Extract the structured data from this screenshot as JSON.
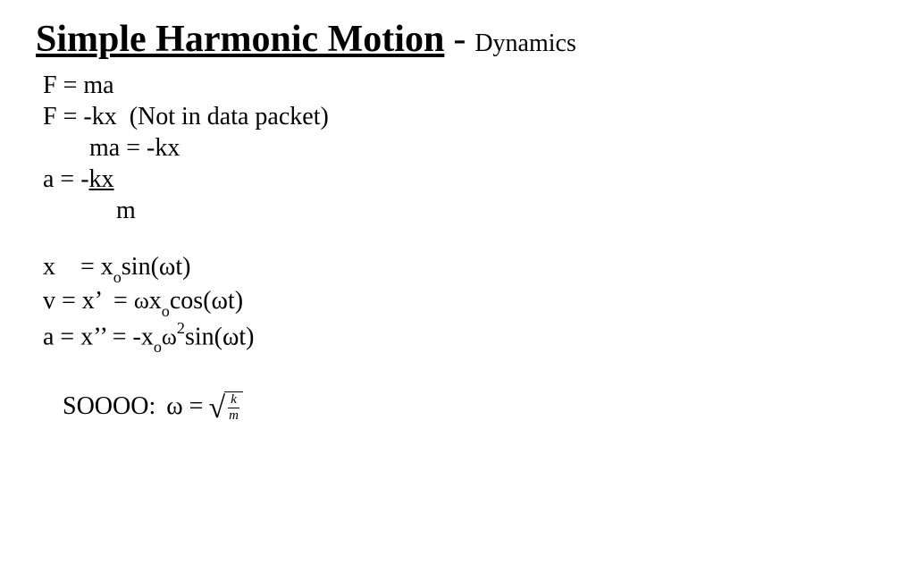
{
  "title": {
    "main": "Simple Harmonic Motion",
    "separator": "-",
    "sub": "Dynamics"
  },
  "equations": {
    "line1": "F = ma",
    "line2": "F = -kx  (Not in data packet)",
    "line3": "ma = -kx",
    "line4_prefix": "a = -",
    "line4_frac_top": "kx",
    "line4_frac_bottom": "m",
    "linex_prefix": "x    = x",
    "linex_sub": "o",
    "linex_suffix": "sin(ωt)",
    "linev_prefix": "v = x’  = ",
    "linev_omega": "ω",
    "linev_x": "x",
    "linev_sub": "o",
    "linev_suffix": "cos(ωt)",
    "linea_prefix": "a = x’’ = -x",
    "linea_sub1": "o",
    "linea_omega": "ω",
    "linea_sup": "2",
    "linea_suffix": "sin(ωt)"
  },
  "conclusion": {
    "label": "SOOOO:  ",
    "omega_eq": "ω = ",
    "radical": "√",
    "frac_num": "k",
    "frac_den": "m"
  },
  "styling": {
    "background_color": "#ffffff",
    "text_color": "#000000",
    "font_family": "Times New Roman",
    "title_fontsize_pt": 42,
    "body_fontsize_pt": 28,
    "title_weight": "bold",
    "title_underline": true
  }
}
